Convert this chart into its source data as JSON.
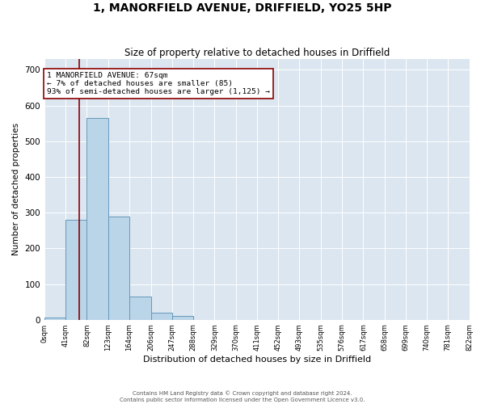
{
  "title": "1, MANORFIELD AVENUE, DRIFFIELD, YO25 5HP",
  "subtitle": "Size of property relative to detached houses in Driffield",
  "xlabel": "Distribution of detached houses by size in Driffield",
  "ylabel": "Number of detached properties",
  "footer1": "Contains HM Land Registry data © Crown copyright and database right 2024.",
  "footer2": "Contains public sector information licensed under the Open Government Licence v3.0.",
  "bin_edges": [
    0,
    41,
    82,
    123,
    164,
    206,
    247,
    288,
    329,
    370,
    411,
    452,
    493,
    535,
    576,
    617,
    658,
    699,
    740,
    781,
    822
  ],
  "bar_heights": [
    5,
    280,
    565,
    290,
    65,
    20,
    10,
    0,
    0,
    0,
    0,
    0,
    0,
    0,
    0,
    0,
    0,
    0,
    0,
    0
  ],
  "bar_color": "#bad4e8",
  "bar_edge_color": "#6699bb",
  "background_color": "#dce6f0",
  "property_line_x": 67,
  "property_line_color": "#8b0000",
  "annotation_text": "1 MANORFIELD AVENUE: 67sqm\n← 7% of detached houses are smaller (85)\n93% of semi-detached houses are larger (1,125) →",
  "annotation_box_color": "white",
  "annotation_box_edge_color": "#8b0000",
  "ylim": [
    0,
    730
  ],
  "xlim": [
    0,
    822
  ],
  "yticks": [
    0,
    100,
    200,
    300,
    400,
    500,
    600,
    700
  ],
  "xtick_labels": [
    "0sqm",
    "41sqm",
    "82sqm",
    "123sqm",
    "164sqm",
    "206sqm",
    "247sqm",
    "288sqm",
    "329sqm",
    "370sqm",
    "411sqm",
    "452sqm",
    "493sqm",
    "535sqm",
    "576sqm",
    "617sqm",
    "658sqm",
    "699sqm",
    "740sqm",
    "781sqm",
    "822sqm"
  ],
  "xtick_positions": [
    0,
    41,
    82,
    123,
    164,
    206,
    247,
    288,
    329,
    370,
    411,
    452,
    493,
    535,
    576,
    617,
    658,
    699,
    740,
    781,
    822
  ],
  "title_fontsize": 10,
  "subtitle_fontsize": 8.5,
  "xlabel_fontsize": 8,
  "ylabel_fontsize": 7.5,
  "ytick_fontsize": 7.5,
  "xtick_fontsize": 6
}
